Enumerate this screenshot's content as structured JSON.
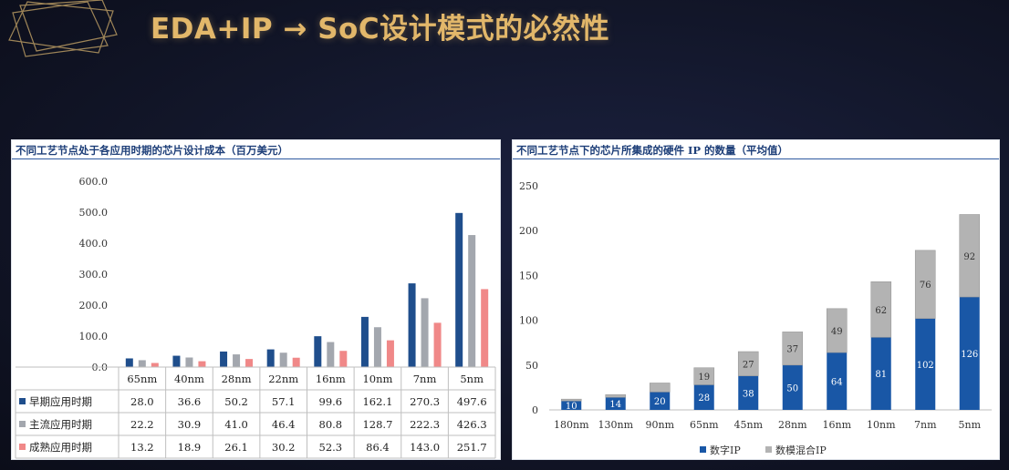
{
  "slide_title": "EDA+IP → SoC设计模式的必然性",
  "colors": {
    "title": "#e2b76a",
    "dark_blue": "#1f4e8c",
    "gray": "#a3a7ae",
    "pink": "#f08888",
    "ip_blue": "#1957a6",
    "ip_gray": "#b3b3b3"
  },
  "chart_data": [
    {
      "type": "bar",
      "title": "不同工艺节点处于各应用时期的芯片设计成本（百万美元）",
      "categories": [
        "65nm",
        "40nm",
        "28nm",
        "22nm",
        "16nm",
        "10nm",
        "7nm",
        "5nm"
      ],
      "ylim": [
        0,
        600
      ],
      "yticks": [
        "0.0",
        "100.0",
        "200.0",
        "300.0",
        "400.0",
        "500.0",
        "600.0"
      ],
      "grid": false,
      "legend": "table-below",
      "series": [
        {
          "name": "早期应用时期",
          "color": "#1f4e8c",
          "values": [
            28.0,
            36.6,
            50.2,
            57.1,
            99.6,
            162.1,
            270.3,
            497.6
          ],
          "labels": [
            "28.0",
            "36.6",
            "50.2",
            "57.1",
            "99.6",
            "162.1",
            "270.3",
            "497.6"
          ]
        },
        {
          "name": "主流应用时期",
          "color": "#a3a7ae",
          "values": [
            22.2,
            30.9,
            41.0,
            46.4,
            80.8,
            128.7,
            222.3,
            426.3
          ],
          "labels": [
            "22.2",
            "30.9",
            "41.0",
            "46.4",
            "80.8",
            "128.7",
            "222.3",
            "426.3"
          ]
        },
        {
          "name": "成熟应用时期",
          "color": "#f08888",
          "values": [
            13.2,
            18.9,
            26.1,
            30.2,
            52.3,
            86.4,
            143.0,
            251.7
          ],
          "labels": [
            "13.2",
            "18.9",
            "26.1",
            "30.2",
            "52.3",
            "86.4",
            "143.0",
            "251.7"
          ]
        }
      ]
    },
    {
      "type": "bar",
      "stacked": true,
      "title": "不同工艺节点下的芯片所集成的硬件 IP 的数量（平均值）",
      "categories": [
        "180nm",
        "130nm",
        "90nm",
        "65nm",
        "45nm",
        "28nm",
        "16nm",
        "10nm",
        "7nm",
        "5nm"
      ],
      "ylim": [
        0,
        250
      ],
      "yticks": [
        "0",
        "50",
        "100",
        "150",
        "200",
        "250"
      ],
      "grid": false,
      "legend": "bottom",
      "series": [
        {
          "name": "数字IP",
          "color": "#1957a6",
          "values": [
            10,
            14,
            20,
            28,
            38,
            50,
            64,
            81,
            102,
            126
          ],
          "labels": [
            "10",
            "14",
            "20",
            "28",
            "38",
            "50",
            "64",
            "81",
            "102",
            "126"
          ]
        },
        {
          "name": "数模混合IP",
          "color": "#b3b3b3",
          "values": [
            2,
            3,
            10,
            19,
            27,
            37,
            49,
            62,
            76,
            92
          ],
          "labels": [
            "",
            "",
            "",
            "19",
            "27",
            "37",
            "49",
            "62",
            "76",
            "92"
          ]
        }
      ]
    }
  ]
}
